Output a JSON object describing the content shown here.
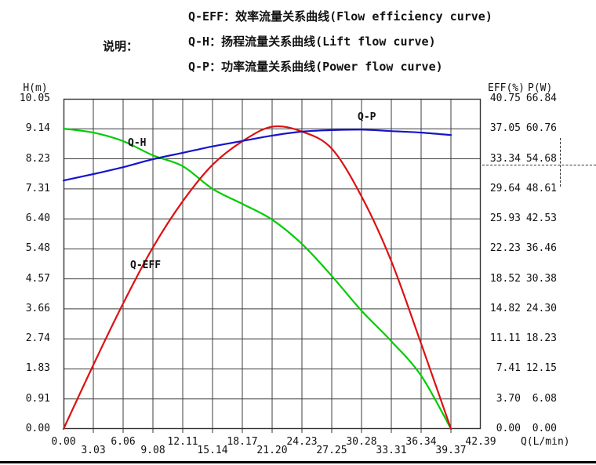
{
  "legend": {
    "label": "说明：",
    "items": [
      "Q-EFF：效率流量关系曲线(Flow efficiency curve)",
      "Q-H：扬程流量关系曲线(Lift flow curve)",
      "Q-P：功率流量关系曲线(Power flow curve)"
    ]
  },
  "axes": {
    "left_title": "H(m)",
    "right_title_eff": "EFF(%)",
    "right_title_p": "P(W)",
    "x_title": "Q(L/min)",
    "left_ticks": [
      "10.05",
      "9.14",
      "8.23",
      "7.31",
      "6.40",
      "5.48",
      "4.57",
      "3.66",
      "2.74",
      "1.83",
      "0.91",
      "0.00"
    ],
    "eff_ticks": [
      "40.75",
      "37.05",
      "33.34",
      "29.64",
      "25.93",
      "22.23",
      "18.52",
      "14.82",
      "11.11",
      "7.41",
      "3.70",
      "0.00"
    ],
    "p_ticks": [
      "66.84",
      "60.76",
      "54.68",
      "48.61",
      "42.53",
      "36.46",
      "30.38",
      "24.30",
      "18.23",
      "12.15",
      "6.08",
      "0.00"
    ],
    "x_ticks": [
      "0.00",
      "3.03",
      "6.06",
      "9.08",
      "12.11",
      "15.14",
      "18.17",
      "21.20",
      "24.23",
      "27.25",
      "30.28",
      "33.31",
      "36.34",
      "39.37",
      "42.39"
    ]
  },
  "chart_labels": {
    "q_h": "Q-H",
    "q_eff": "Q-EFF",
    "q_p": "Q-P"
  },
  "colors": {
    "grid": "#3c3c3c",
    "border": "#333333",
    "q_h": "#00CC00",
    "q_eff": "#DD1111",
    "q_p": "#1414CC"
  },
  "chart_data": {
    "type": "line",
    "x_label": "Q(L/min)",
    "left_axis_label": "H(m)",
    "right_axis_labels": [
      "EFF(%)",
      "P(W)"
    ],
    "x": [
      0.0,
      3.03,
      6.06,
      9.08,
      12.11,
      15.14,
      18.17,
      21.2,
      24.23,
      27.25,
      30.28,
      33.31,
      36.34,
      39.37
    ],
    "series": [
      {
        "name": "Q-H",
        "axis": "H",
        "color": "#00CC00",
        "values": [
          9.14,
          9.02,
          8.76,
          8.33,
          8.0,
          7.31,
          6.85,
          6.37,
          5.63,
          4.66,
          3.6,
          2.67,
          1.62,
          0.0
        ]
      },
      {
        "name": "Q-EFF",
        "axis": "EFF",
        "color": "#DD1111",
        "values": [
          0.0,
          7.9,
          15.5,
          22.4,
          28.1,
          32.6,
          35.5,
          37.3,
          36.7,
          34.6,
          28.7,
          20.7,
          10.5,
          0.0
        ]
      },
      {
        "name": "Q-P",
        "axis": "P",
        "color": "#1414CC",
        "values": [
          50.3,
          51.6,
          53.0,
          54.6,
          55.9,
          57.2,
          58.3,
          59.4,
          60.2,
          60.5,
          60.6,
          60.3,
          60.0,
          59.5
        ]
      }
    ],
    "axis_ranges": {
      "Q": [
        0,
        42.39
      ],
      "H": [
        0,
        10.05
      ],
      "EFF": [
        0,
        40.75
      ],
      "P": [
        0,
        66.84
      ]
    },
    "grid": {
      "on": true,
      "x_divisions": 14,
      "y_divisions": 11
    },
    "legend_position": "top"
  }
}
